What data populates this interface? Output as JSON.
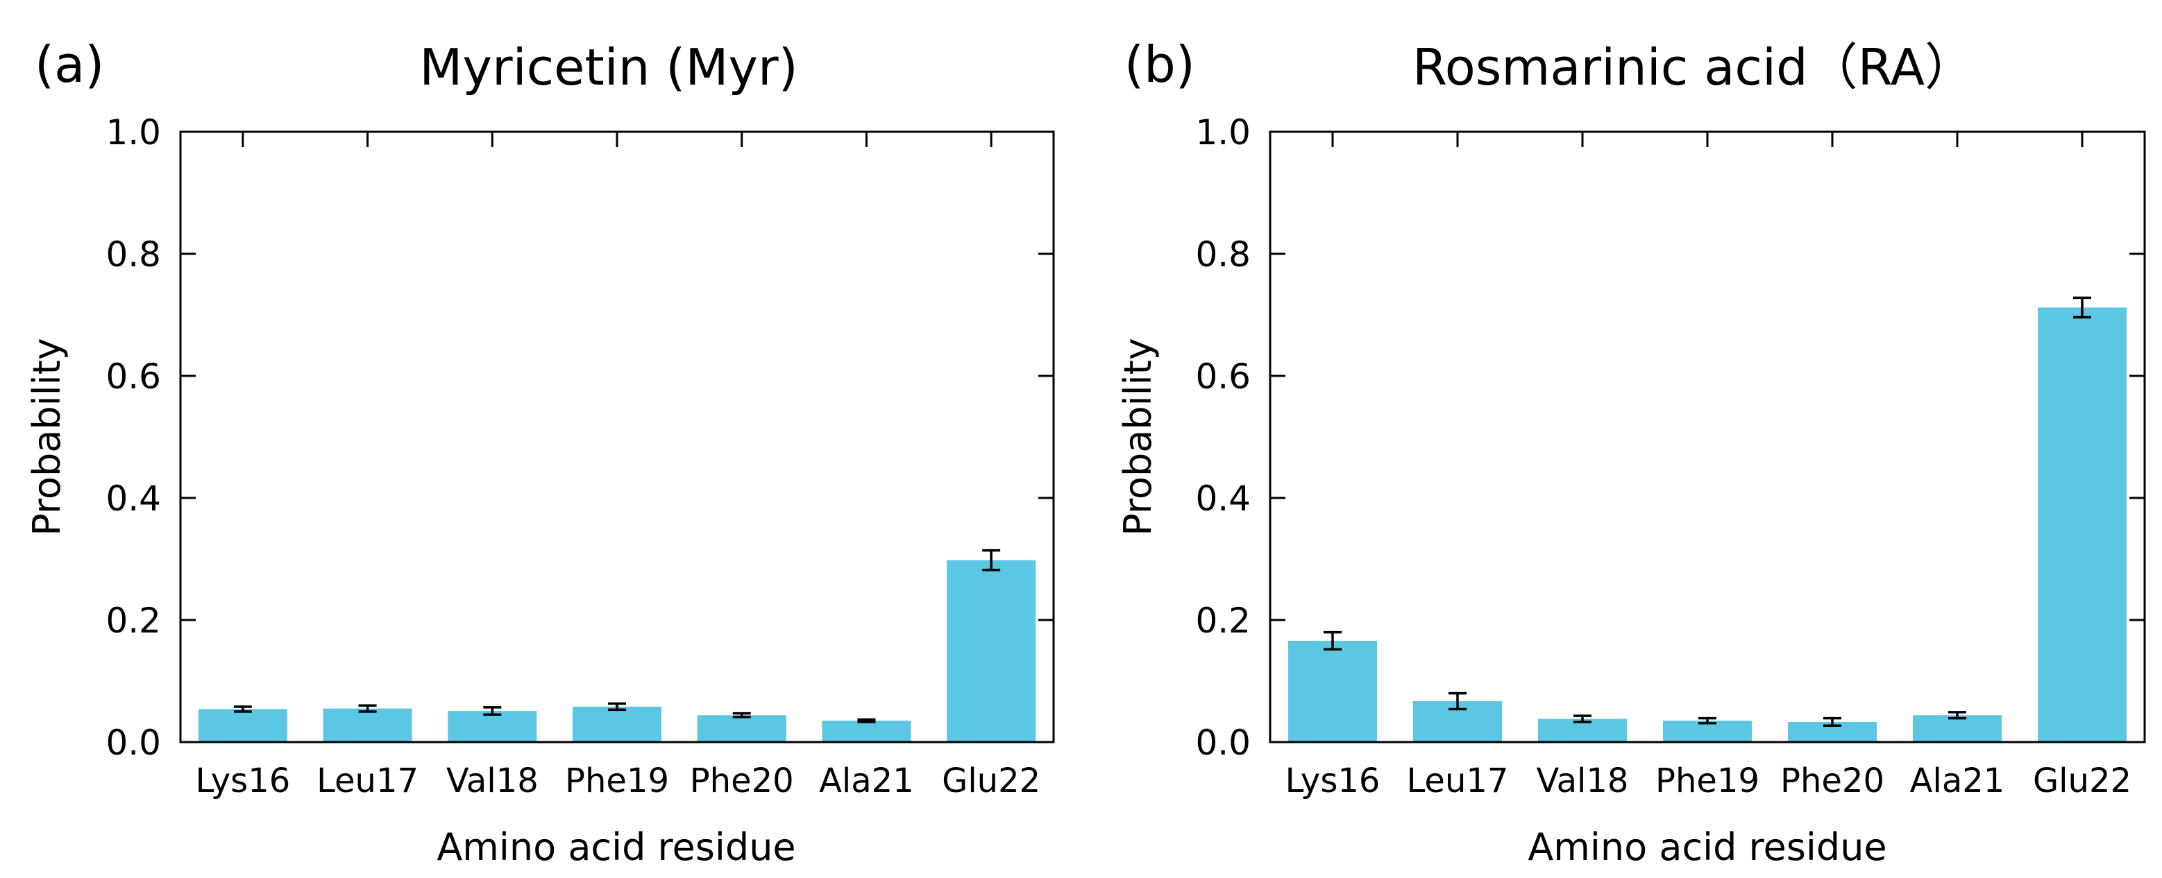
{
  "chart_data": [
    {
      "type": "bar",
      "panel": "(a)",
      "title": "Myricetin (Myr)",
      "xlabel": "Amino acid residue",
      "ylabel": "Probability",
      "ylim": [
        0,
        1.0
      ],
      "yticks": [
        "0.0",
        "0.2",
        "0.4",
        "0.6",
        "0.8",
        "1.0"
      ],
      "categories": [
        "Lys16",
        "Leu17",
        "Val18",
        "Phe19",
        "Phe20",
        "Ala21",
        "Glu22"
      ],
      "values": [
        0.054,
        0.055,
        0.051,
        0.058,
        0.044,
        0.035,
        0.298
      ],
      "errors": [
        0.004,
        0.005,
        0.006,
        0.005,
        0.003,
        0.002,
        0.016
      ],
      "bar_color": "#5bc7e3",
      "grid": false
    },
    {
      "type": "bar",
      "panel": "(b)",
      "title": "Rosmarinic acid（RA）",
      "xlabel": "Amino acid residue",
      "ylabel": "Probability",
      "ylim": [
        0,
        1.0
      ],
      "yticks": [
        "0.0",
        "0.2",
        "0.4",
        "0.6",
        "0.8",
        "1.0"
      ],
      "categories": [
        "Lys16",
        "Leu17",
        "Val18",
        "Phe19",
        "Phe20",
        "Ala21",
        "Glu22"
      ],
      "values": [
        0.166,
        0.067,
        0.038,
        0.035,
        0.033,
        0.044,
        0.712
      ],
      "errors": [
        0.014,
        0.013,
        0.005,
        0.004,
        0.006,
        0.005,
        0.016
      ],
      "bar_color": "#5bc7e3",
      "grid": false
    }
  ]
}
